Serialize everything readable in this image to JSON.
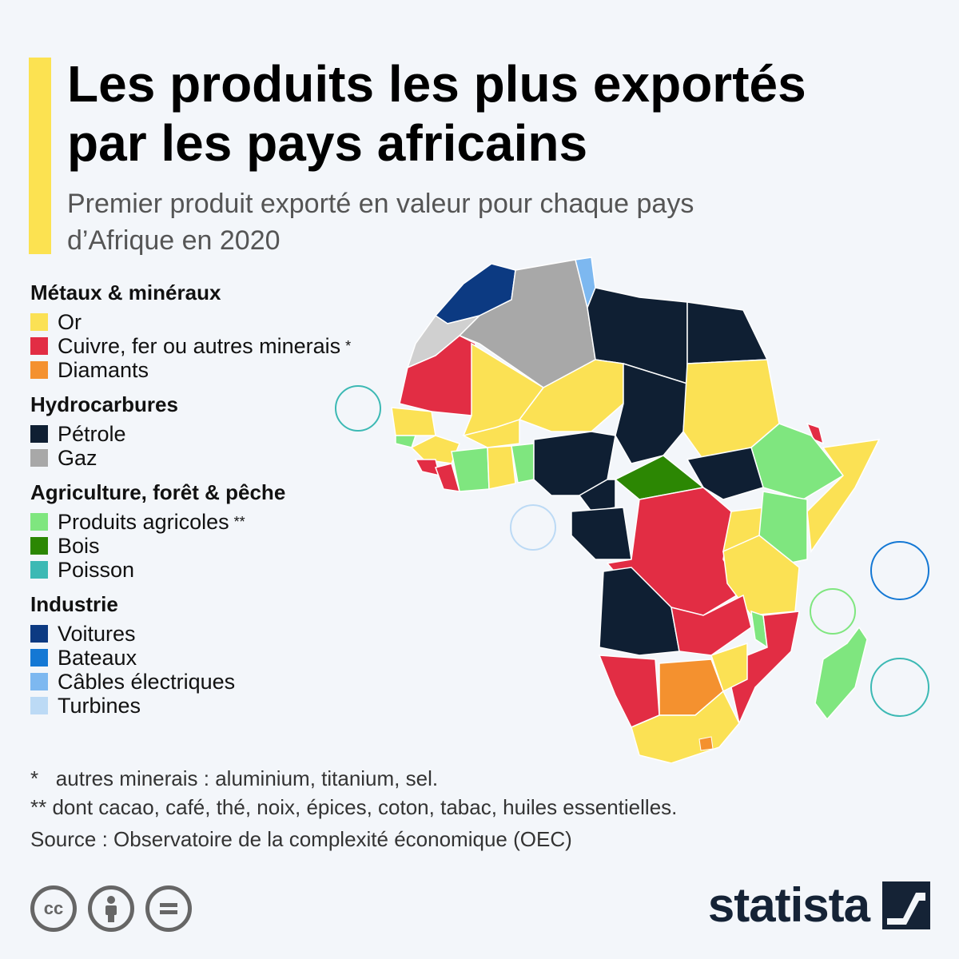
{
  "title": {
    "line1": "Les produits les plus exportés",
    "line2": "par les pays africains"
  },
  "subtitle": {
    "line1": "Premier produit exporté en valeur pour chaque pays",
    "line2": "d’Afrique en 2020"
  },
  "legend": {
    "metaux": {
      "title": "Métaux & minéraux",
      "items": [
        {
          "label": "Or",
          "color": "#fbe154"
        },
        {
          "label": "Cuivre, fer ou autres minerais",
          "color": "#e22d44",
          "note": "*"
        },
        {
          "label": "Diamants",
          "color": "#f4912f"
        }
      ]
    },
    "hydrocarbures": {
      "title": "Hydrocarbures",
      "items": [
        {
          "label": "Pétrole",
          "color": "#0f1f33"
        },
        {
          "label": "Gaz",
          "color": "#a8a8a8"
        }
      ]
    },
    "agriculture": {
      "title": "Agriculture, forêt & pêche",
      "items": [
        {
          "label": "Produits agricoles",
          "color": "#7fe67f",
          "note": "**"
        },
        {
          "label": "Bois",
          "color": "#2c8703"
        },
        {
          "label": "Poisson",
          "color": "#3cb9b4"
        }
      ]
    },
    "industrie": {
      "title": "Industrie",
      "items": [
        {
          "label": "Voitures",
          "color": "#0c3a82"
        },
        {
          "label": "Bateaux",
          "color": "#1478d4"
        },
        {
          "label": "Câbles électriques",
          "color": "#7db8f0"
        },
        {
          "label": "Turbines",
          "color": "#bcdaf5"
        }
      ]
    }
  },
  "footnotes": {
    "star1_mark": "*",
    "star1_text": "autres minerais : aluminium, titanium, sel.",
    "star2_text": "** dont cacao, café, thé, noix, épices, coton, tabac, huiles essentielles.",
    "source": "Source : Observatoire de la complexité économique (OEC)"
  },
  "branding": {
    "logo_text": "statista",
    "cc_icons": [
      "cc-icon",
      "by-icon",
      "nd-icon"
    ]
  }
}
